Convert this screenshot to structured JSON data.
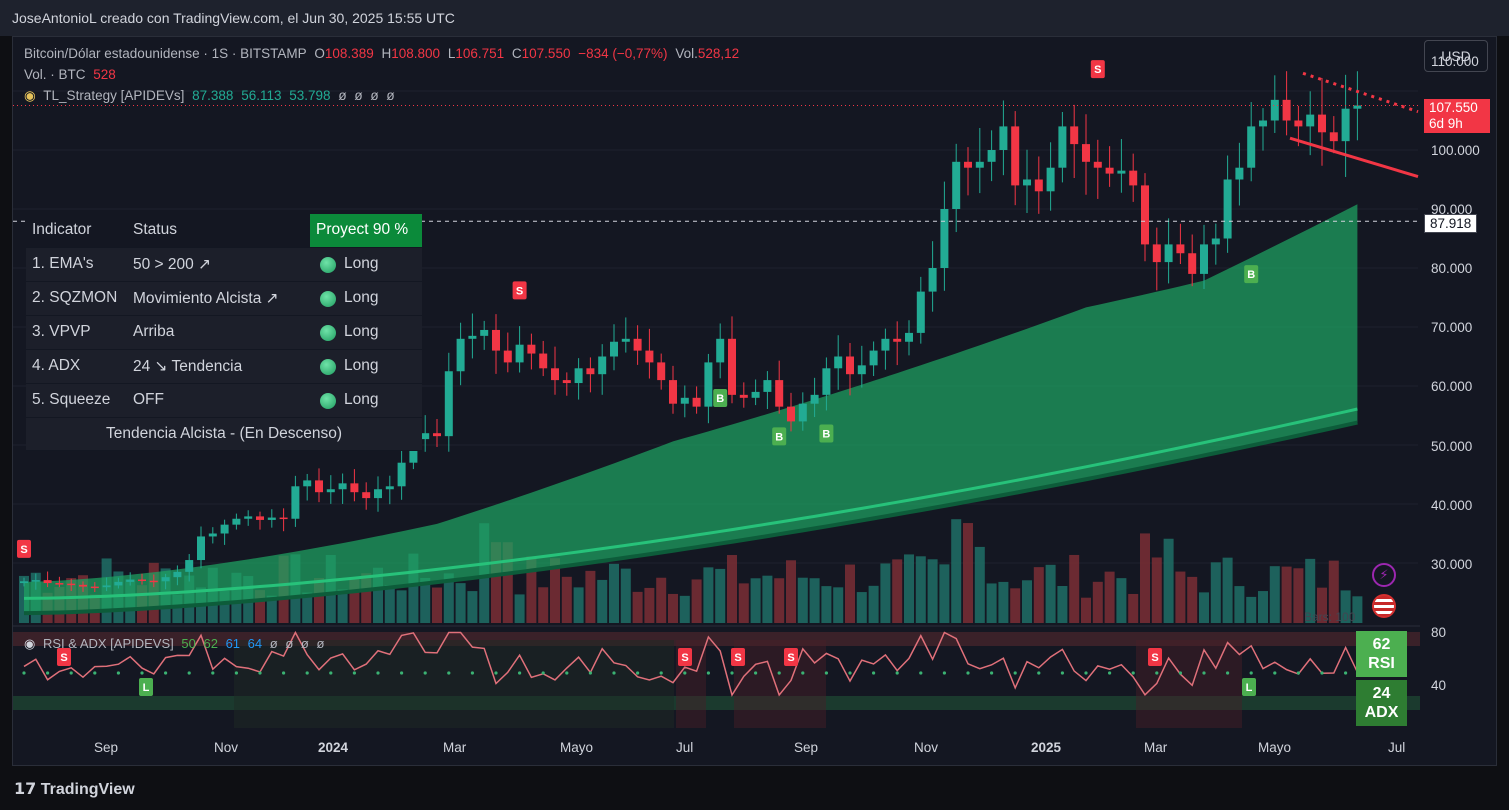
{
  "header": {
    "attribution": "JoseAntonioL creado con TradingView.com, el Jun 30, 2025 15:55 UTC"
  },
  "legend": {
    "symbol": "Bitcoin/Dólar estadounidense · 1S · BITSTAMP",
    "o_label": "O",
    "o_value": "108.389",
    "h_label": "H",
    "h_value": "108.800",
    "l_label": "L",
    "l_value": "106.751",
    "c_label": "C",
    "c_value": "107.550",
    "change": "−834 (−0,77%)",
    "vol_label": "Vol.",
    "vol_value": "528,12",
    "vol_line_label": "Vol. · BTC",
    "vol_line_value": "528",
    "strategy_name": "TL_Strategy [APIDEVs]",
    "strategy_values": [
      "87.388",
      "56.113",
      "53.798",
      "ø",
      "ø",
      "ø",
      "ø"
    ]
  },
  "currency_button": "USD",
  "price_axis": {
    "ticks": [
      "110.000",
      "100.000",
      "90.000",
      "80.000",
      "70.000",
      "60.000",
      "50.000",
      "40.000",
      "30.000"
    ],
    "current_price": "107.550",
    "countdown": "6d 9h",
    "line_level": "87.918"
  },
  "time_axis": {
    "ticks": [
      "Sep",
      "Nov",
      "2024",
      "Mar",
      "Mayo",
      "Jul",
      "Sep",
      "Nov",
      "2025",
      "Mar",
      "Mayo",
      "Jul"
    ]
  },
  "table": {
    "headers": {
      "indicator": "Indicator",
      "status": "Status",
      "projection": "Proyect 90 %"
    },
    "rows": [
      {
        "indicator": "1. EMA's",
        "status": "50 > 200 ↗",
        "signal": "Long"
      },
      {
        "indicator": "2. SQZMON",
        "status": "Movimiento Alcista ↗",
        "signal": "Long"
      },
      {
        "indicator": "3. VPVP",
        "status": "Arriba",
        "signal": "Long"
      },
      {
        "indicator": "4. ADX",
        "status": "24 ↘ Tendencia",
        "signal": "Long"
      },
      {
        "indicator": "5. Squeeze",
        "status": "OFF",
        "signal": "Long"
      }
    ],
    "footer": "Tendencia Alcista - (En Descenso)"
  },
  "volume_note": "Bars: 100",
  "rsi_panel": {
    "title": "RSI & ADX [APIDEVS]",
    "values": [
      "50",
      "62",
      "61",
      "64",
      "ø",
      "ø",
      "ø",
      "ø"
    ],
    "axis_ticks": [
      "80",
      "40"
    ],
    "rsi_value": "62",
    "rsi_label": "RSI",
    "adx_value": "24",
    "adx_label": "ADX"
  },
  "signals": {
    "buy": "B",
    "sell": "S",
    "low": "L"
  },
  "brand": "TradingView",
  "colors": {
    "up": "#22ab94",
    "down": "#f23645",
    "band": "#1fa463",
    "background": "#141722"
  },
  "chart_data": {
    "type": "candlestick",
    "title": "Bitcoin/Dólar estadounidense · 1S · BITSTAMP",
    "price_range": [
      21000,
      117000
    ],
    "current_price": 107550,
    "horizontal_line": 87918,
    "last_candle": {
      "open": 108389,
      "high": 108800,
      "low": 106751,
      "close": 107550
    },
    "closes_approx": [
      26900,
      27100,
      26600,
      26500,
      26300,
      26000,
      25900,
      26200,
      26800,
      27200,
      27000,
      26900,
      27600,
      28500,
      30500,
      34500,
      35000,
      36500,
      37500,
      37900,
      37300,
      37700,
      37500,
      43000,
      44000,
      42000,
      42500,
      43500,
      42000,
      41000,
      42500,
      43000,
      47000,
      51000,
      52000,
      51500,
      62500,
      68000,
      68500,
      69500,
      66000,
      64000,
      67000,
      65500,
      63000,
      61000,
      60500,
      63000,
      62000,
      65000,
      67500,
      68000,
      66000,
      64000,
      61000,
      57000,
      58000,
      56500,
      64000,
      68000,
      58500,
      58000,
      59000,
      61000,
      56500,
      54000,
      57000,
      58500,
      63000,
      65000,
      62000,
      63500,
      66000,
      68000,
      67500,
      69000,
      76000,
      80000,
      90000,
      98000,
      97000,
      98000,
      100000,
      104000,
      94000,
      95000,
      93000,
      97000,
      104000,
      101000,
      98000,
      97000,
      96000,
      96500,
      94000,
      84000,
      81000,
      84000,
      82500,
      79000,
      84000,
      85000,
      95000,
      97000,
      104000,
      105000,
      108500,
      105000,
      104000,
      106000,
      103000,
      101500,
      107000,
      107550
    ],
    "ema_band_upper_end": 87388,
    "ema_50_end": 56113,
    "ema_200_end": 53798,
    "rsi": 62,
    "adx": 24
  }
}
